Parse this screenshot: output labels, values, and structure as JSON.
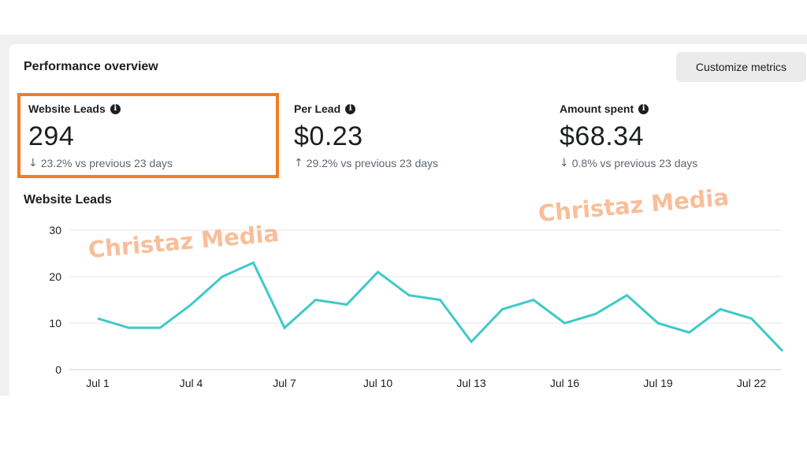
{
  "panel": {
    "title": "Performance overview",
    "customize_label": "Customize metrics"
  },
  "metrics": [
    {
      "label": "Website Leads",
      "value": "294",
      "direction": "down",
      "change": "23.2% vs previous 23 days"
    },
    {
      "label": "Per Lead",
      "value": "$0.23",
      "direction": "up",
      "change": "29.2% vs previous 23 days"
    },
    {
      "label": "Amount spent",
      "value": "$68.34",
      "direction": "down",
      "change": "0.8% vs previous 23 days"
    }
  ],
  "icons": {
    "info": "info-icon",
    "down": "arrow-down-icon",
    "up": "arrow-up-icon"
  },
  "colors": {
    "line": "#3ec9c8",
    "highlight": "#f57c22",
    "watermark": "#f5965a"
  },
  "watermarks": [
    "Christaz Media",
    "Christaz Media"
  ],
  "chart_data": {
    "type": "line",
    "title": "Website Leads",
    "xlabel": "",
    "ylabel": "",
    "ylim": [
      0,
      30
    ],
    "y_ticks": [
      0,
      10,
      20,
      30
    ],
    "x": [
      "Jul 1",
      "Jul 2",
      "Jul 3",
      "Jul 4",
      "Jul 5",
      "Jul 6",
      "Jul 7",
      "Jul 8",
      "Jul 9",
      "Jul 10",
      "Jul 11",
      "Jul 12",
      "Jul 13",
      "Jul 14",
      "Jul 15",
      "Jul 16",
      "Jul 17",
      "Jul 18",
      "Jul 19",
      "Jul 20",
      "Jul 21",
      "Jul 22",
      "Jul 23"
    ],
    "x_tick_labels": [
      "Jul 1",
      "Jul 4",
      "Jul 7",
      "Jul 10",
      "Jul 13",
      "Jul 16",
      "Jul 19",
      "Jul 22"
    ],
    "values": [
      11,
      9,
      9,
      14,
      20,
      23,
      9,
      15,
      14,
      21,
      16,
      15,
      6,
      13,
      15,
      10,
      12,
      16,
      10,
      8,
      13,
      11,
      4
    ],
    "grid": true,
    "legend": "none"
  }
}
